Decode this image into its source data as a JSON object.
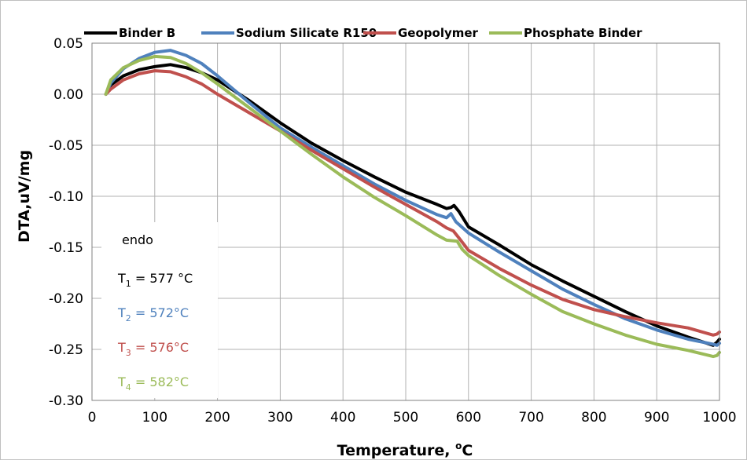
{
  "chart_data": {
    "type": "line",
    "xlabel": "Temperature, °C",
    "xlabel_main": "Temperature, ",
    "xlabel_sup": "o",
    "xlabel_unit": "C",
    "ylabel": "DTA,uV/mg",
    "xlim": [
      0,
      1000
    ],
    "ylim": [
      -0.3,
      0.05
    ],
    "x_ticks": [
      0,
      100,
      200,
      300,
      400,
      500,
      600,
      700,
      800,
      900,
      1000
    ],
    "y_ticks": [
      0.05,
      0.0,
      -0.05,
      -0.1,
      -0.15,
      -0.2,
      -0.25,
      -0.3
    ],
    "x_tick_labels": [
      "0",
      "100",
      "200",
      "300",
      "400",
      "500",
      "600",
      "700",
      "800",
      "900",
      "1000"
    ],
    "y_tick_labels": [
      "0.05",
      "0.00",
      "-0.05",
      "-0.10",
      "-0.15",
      "-0.20",
      "-0.25",
      "-0.30"
    ],
    "grid": true,
    "legend_position": "top",
    "series": [
      {
        "name": "Binder B",
        "color": "#000000",
        "x": [
          22,
          30,
          50,
          75,
          100,
          125,
          150,
          175,
          200,
          250,
          300,
          350,
          400,
          450,
          500,
          550,
          565,
          572,
          577,
          585,
          600,
          650,
          700,
          750,
          800,
          850,
          900,
          950,
          990,
          996,
          1000
        ],
        "y": [
          0.0,
          0.009,
          0.018,
          0.024,
          0.027,
          0.029,
          0.026,
          0.021,
          0.014,
          -0.006,
          -0.028,
          -0.048,
          -0.065,
          -0.081,
          -0.096,
          -0.108,
          -0.112,
          -0.111,
          -0.109,
          -0.115,
          -0.13,
          -0.148,
          -0.167,
          -0.183,
          -0.198,
          -0.213,
          -0.227,
          -0.238,
          -0.246,
          -0.243,
          -0.24
        ]
      },
      {
        "name": "Sodium Silicate R150",
        "color": "#4f81bd",
        "x": [
          22,
          30,
          50,
          75,
          100,
          125,
          150,
          175,
          200,
          250,
          300,
          350,
          400,
          450,
          500,
          550,
          565,
          572,
          580,
          600,
          650,
          700,
          750,
          800,
          850,
          900,
          950,
          990,
          996,
          1000
        ],
        "y": [
          0.0,
          0.011,
          0.025,
          0.035,
          0.041,
          0.043,
          0.038,
          0.03,
          0.018,
          -0.008,
          -0.033,
          -0.052,
          -0.07,
          -0.088,
          -0.104,
          -0.118,
          -0.121,
          -0.117,
          -0.125,
          -0.136,
          -0.155,
          -0.173,
          -0.191,
          -0.206,
          -0.22,
          -0.231,
          -0.24,
          -0.245,
          -0.246,
          -0.244
        ]
      },
      {
        "name": "Geopolymer",
        "color": "#c0504d",
        "x": [
          22,
          30,
          50,
          75,
          100,
          125,
          150,
          175,
          200,
          250,
          300,
          350,
          400,
          450,
          500,
          550,
          565,
          576,
          585,
          600,
          650,
          700,
          750,
          800,
          850,
          900,
          950,
          990,
          996,
          1000
        ],
        "y": [
          0.0,
          0.005,
          0.014,
          0.02,
          0.023,
          0.022,
          0.017,
          0.01,
          0.0,
          -0.018,
          -0.036,
          -0.055,
          -0.073,
          -0.091,
          -0.108,
          -0.125,
          -0.131,
          -0.134,
          -0.141,
          -0.153,
          -0.171,
          -0.187,
          -0.201,
          -0.211,
          -0.218,
          -0.224,
          -0.229,
          -0.236,
          -0.235,
          -0.233
        ]
      },
      {
        "name": "Phosphate Binder",
        "color": "#9bbb59",
        "x": [
          22,
          30,
          50,
          75,
          100,
          125,
          150,
          175,
          200,
          250,
          300,
          350,
          400,
          450,
          500,
          550,
          565,
          582,
          590,
          600,
          650,
          700,
          750,
          800,
          850,
          900,
          950,
          990,
          996,
          1000
        ],
        "y": [
          0.0,
          0.014,
          0.026,
          0.033,
          0.037,
          0.036,
          0.03,
          0.021,
          0.01,
          -0.013,
          -0.036,
          -0.059,
          -0.081,
          -0.101,
          -0.119,
          -0.138,
          -0.143,
          -0.144,
          -0.152,
          -0.158,
          -0.178,
          -0.196,
          -0.213,
          -0.225,
          -0.236,
          -0.245,
          -0.251,
          -0.257,
          -0.256,
          -0.253
        ]
      }
    ]
  },
  "annotations": {
    "endo": "endo",
    "items": [
      {
        "base": "T",
        "sub": "1",
        "text": " = 577 °C",
        "color": "#000000"
      },
      {
        "base": "T",
        "sub": "2",
        "text": " = 572°C",
        "color": "#4f81bd"
      },
      {
        "base": "T",
        "sub": "3",
        "text": " = 576°C",
        "color": "#c0504d"
      },
      {
        "base": "T",
        "sub": "4",
        "text": " = 582°C",
        "color": "#9bbb59"
      }
    ]
  }
}
